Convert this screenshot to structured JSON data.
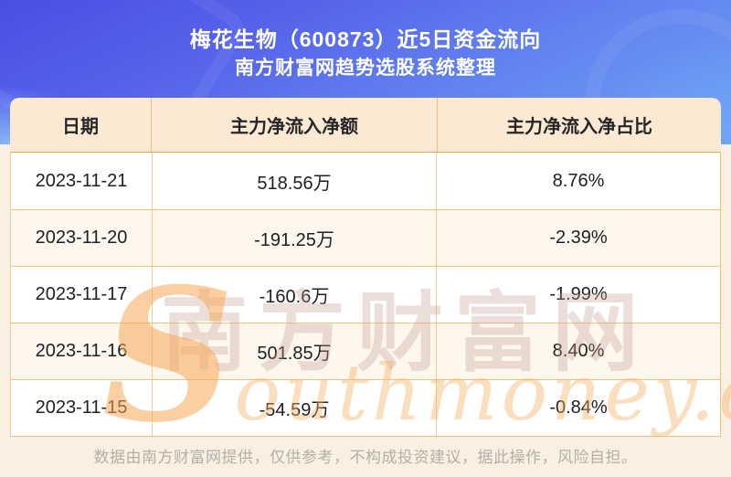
{
  "header": {
    "title": "梅花生物（600873）近5日资金流向",
    "subtitle": "南方财富网趋势选股系统整理"
  },
  "chart_data": {
    "type": "table",
    "title": "梅花生物（600873）近5日资金流向",
    "subtitle": "南方财富网趋势选股系统整理",
    "columns": [
      "日期",
      "主力净流入净额",
      "主力净流入净占比"
    ],
    "rows": [
      [
        "2023-11-21",
        "518.56万",
        "8.76%"
      ],
      [
        "2023-11-20",
        "-191.25万",
        "-2.39%"
      ],
      [
        "2023-11-17",
        "-160.6万",
        "-1.99%"
      ],
      [
        "2023-11-16",
        "501.85万",
        "8.40%"
      ],
      [
        "2023-11-15",
        "-54.59万",
        "-0.84%"
      ]
    ],
    "categories": [
      "2023-11-21",
      "2023-11-20",
      "2023-11-17",
      "2023-11-16",
      "2023-11-15"
    ],
    "series": [
      {
        "name": "主力净流入净额(万)",
        "values": [
          518.56,
          -191.25,
          -160.6,
          501.85,
          -54.59
        ]
      },
      {
        "name": "主力净流入净占比(%)",
        "values": [
          8.76,
          -2.39,
          -1.99,
          8.4,
          -0.84
        ]
      }
    ],
    "legend_position": "none",
    "grid": true
  },
  "watermark": {
    "cn": "南方财富网",
    "en_initial": "S",
    "en_rest": "outhmoney.com"
  },
  "footer": {
    "disclaimer": "数据由南方财富网提供，仅供参考，不构成投资建议，据此操作，风险自担。"
  },
  "colors": {
    "hero_gradient_start": "#4b4ee4",
    "hero_gradient_end": "#6fa0f5",
    "page_background": "#f9efe3",
    "table_header_bg": "#fce9d4",
    "row_alt_bg": "#fdf7ee",
    "table_border": "#f2bd79",
    "title_text": "#ffffff",
    "cell_text": "#1f1f1f",
    "footer_text": "#b5afa4",
    "watermark_orange": "#f6a955"
  }
}
